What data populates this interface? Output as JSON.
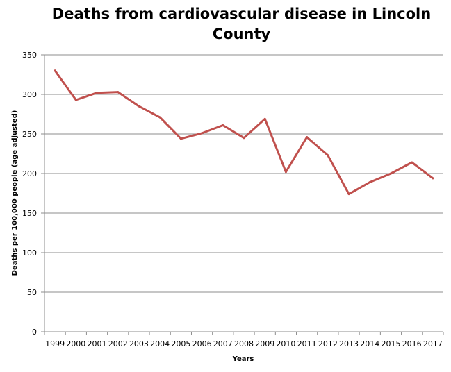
{
  "chart_data": {
    "type": "line",
    "title": "Deaths from cardiovascular disease in Lincoln County",
    "xlabel": "Years",
    "ylabel": "Deaths per 100,000 people (age adjusted)",
    "ylim": [
      0,
      350
    ],
    "yticks": [
      0,
      50,
      100,
      150,
      200,
      250,
      300,
      350
    ],
    "grid": true,
    "legend": "none",
    "line_color": "#C0504D",
    "categories": [
      "1999",
      "2000",
      "2001",
      "2002",
      "2003",
      "2004",
      "2005",
      "2006",
      "2007",
      "2008",
      "2009",
      "2010",
      "2011",
      "2012",
      "2013",
      "2014",
      "2015",
      "2016",
      "2017"
    ],
    "values": [
      330,
      293,
      302,
      303,
      285,
      271,
      244,
      251,
      261,
      245,
      269,
      202,
      246,
      223,
      174,
      189,
      200,
      214,
      194
    ]
  }
}
